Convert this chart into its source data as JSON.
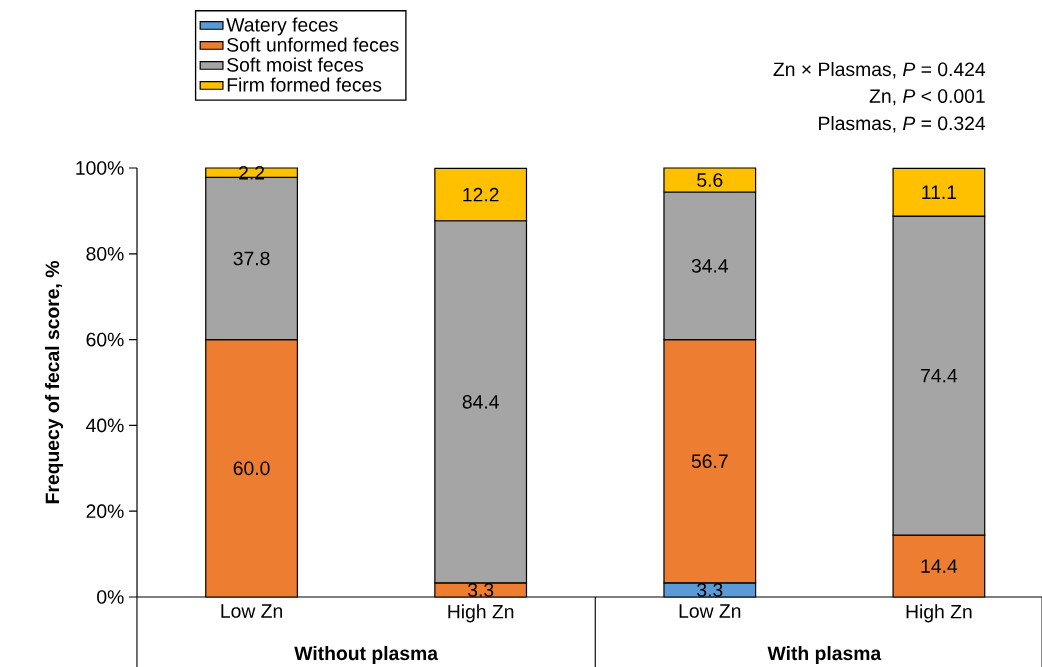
{
  "chart_data": {
    "type": "bar",
    "stacked": true,
    "ylabel": "Frequecy of fecal score, %",
    "categories": [
      "Low Zn",
      "High Zn",
      "Low Zn",
      "High Zn"
    ],
    "series": [
      {
        "name": "Watery feces",
        "color": "#5b9bd5",
        "values": [
          null,
          null,
          3.3,
          null
        ],
        "value_labels": [
          null,
          null,
          "3.3",
          null
        ]
      },
      {
        "name": "Soft unformed feces",
        "color": "#ed7d31",
        "values": [
          60.0,
          3.3,
          56.7,
          14.4
        ],
        "value_labels": [
          "60.0",
          "3.3",
          "56.7",
          "14.4"
        ]
      },
      {
        "name": "Soft moist feces",
        "color": "#a5a5a5",
        "values": [
          37.8,
          84.4,
          34.4,
          74.4
        ],
        "value_labels": [
          "37.8",
          "84.4",
          "34.4",
          "74.4"
        ]
      },
      {
        "name": "Firm formed feces",
        "color": "#ffc000",
        "values": [
          2.2,
          12.2,
          5.6,
          11.1
        ],
        "value_labels": [
          "2.2",
          "12.2",
          "5.6",
          "11.1"
        ]
      }
    ],
    "ylim": [
      0,
      100
    ],
    "yticks": [
      {
        "value": 0,
        "label": "0%"
      },
      {
        "value": 20,
        "label": "20%"
      },
      {
        "value": 40,
        "label": "40%"
      },
      {
        "value": 60,
        "label": "60%"
      },
      {
        "value": 80,
        "label": "80%"
      },
      {
        "value": 100,
        "label": "100%"
      }
    ],
    "legend": "top left",
    "annotations": [
      "Zn × Plasmas, *P* = 0.424",
      "Zn, *P* < 0.001",
      "Plasmas, *P* = 0.324",
      "Without plasma",
      "With plasma"
    ]
  }
}
